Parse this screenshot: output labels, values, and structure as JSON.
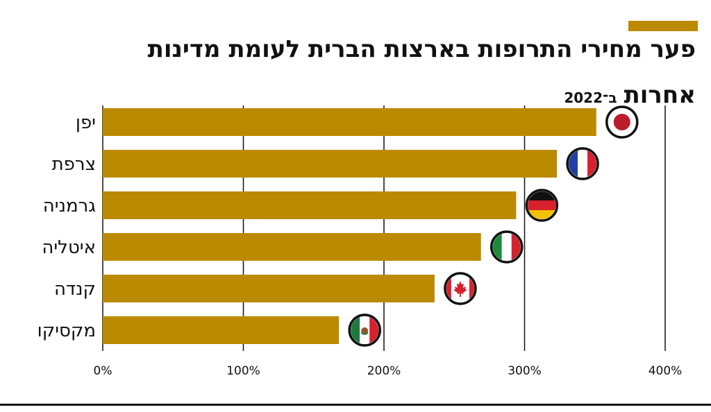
{
  "title_line1": "פער מחירי התרופות בארצות הברית לעומת מדינות",
  "title_line2": "אחרות",
  "year_note": "ב־2022",
  "colors": {
    "accent": "#bb8a00",
    "bar": "#bb8a00",
    "text": "#111111",
    "grid": "#111111"
  },
  "chart_data": {
    "type": "bar",
    "orientation": "horizontal",
    "categories": [
      "יפן",
      "צרפת",
      "גרמניה",
      "איטליה",
      "קנדה",
      "מקסיקו"
    ],
    "values": [
      351,
      323,
      294,
      269,
      236,
      168
    ],
    "value_unit": "%",
    "xlim": [
      0,
      400
    ],
    "xticks": [
      0,
      100,
      200,
      300,
      400
    ],
    "xtick_labels": [
      "0%",
      "100%",
      "200%",
      "300%",
      "400%"
    ],
    "flags": [
      "japan-flag-icon",
      "france-flag-icon",
      "germany-flag-icon",
      "italy-flag-icon",
      "canada-flag-icon",
      "mexico-flag-icon"
    ],
    "grid": true,
    "legend": "none"
  }
}
